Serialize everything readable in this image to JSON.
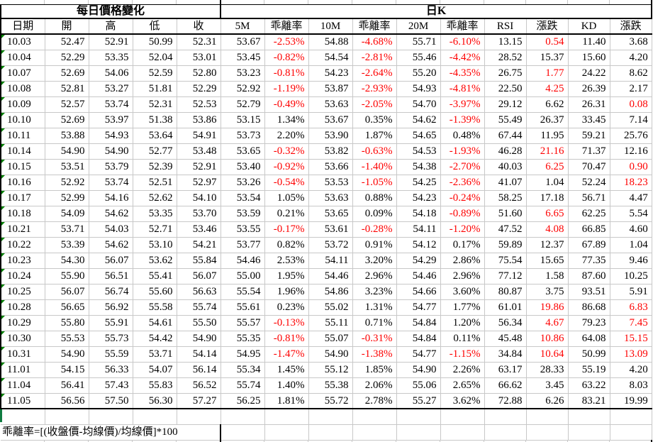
{
  "titles": {
    "left": "每日價格變化",
    "right": "日K"
  },
  "columns": [
    "日期",
    "開",
    "高",
    "低",
    "收",
    "5M",
    "乖離率",
    "10M",
    "乖離率",
    "20M",
    "乖離率",
    "RSI",
    "漲跌",
    "KD",
    "漲跌"
  ],
  "formula_note": "乖離率=[(收盤價-均線價)/均線價]*100",
  "colors": {
    "negative_red": "#fe0000",
    "gridline": "#c8c8c8",
    "border": "#000000",
    "indicator_green": "#008000",
    "selection_green": "#107C41"
  },
  "rows": [
    {
      "date": "10.03",
      "open": "52.47",
      "high": "52.91",
      "low": "50.99",
      "close": "52.31",
      "m5": "53.67",
      "bias5": "-2.53%",
      "m10": "54.88",
      "bias10": "-4.68%",
      "m20": "55.71",
      "bias20": "-6.10%",
      "rsi": "13.15",
      "chg_rsi": "0.54",
      "chg_rsi_red": true,
      "kd": "11.40",
      "chg_kd": "3.68",
      "chg_kd_red": false
    },
    {
      "date": "10.04",
      "open": "52.29",
      "high": "53.35",
      "low": "52.04",
      "close": "53.01",
      "m5": "53.45",
      "bias5": "-0.82%",
      "m10": "54.54",
      "bias10": "-2.81%",
      "m20": "55.46",
      "bias20": "-4.42%",
      "rsi": "28.52",
      "chg_rsi": "15.37",
      "chg_rsi_red": false,
      "kd": "15.60",
      "chg_kd": "4.20",
      "chg_kd_red": false
    },
    {
      "date": "10.07",
      "open": "52.69",
      "high": "54.06",
      "low": "52.59",
      "close": "52.80",
      "m5": "53.23",
      "bias5": "-0.81%",
      "m10": "54.23",
      "bias10": "-2.64%",
      "m20": "55.20",
      "bias20": "-4.35%",
      "rsi": "26.75",
      "chg_rsi": "1.77",
      "chg_rsi_red": true,
      "kd": "24.22",
      "chg_kd": "8.62",
      "chg_kd_red": false
    },
    {
      "date": "10.08",
      "open": "52.81",
      "high": "53.27",
      "low": "51.81",
      "close": "52.29",
      "m5": "52.92",
      "bias5": "-1.19%",
      "m10": "53.87",
      "bias10": "-2.93%",
      "m20": "54.93",
      "bias20": "-4.81%",
      "rsi": "22.50",
      "chg_rsi": "4.25",
      "chg_rsi_red": true,
      "kd": "26.39",
      "chg_kd": "2.17",
      "chg_kd_red": false
    },
    {
      "date": "10.09",
      "open": "52.57",
      "high": "53.74",
      "low": "52.31",
      "close": "52.53",
      "m5": "52.79",
      "bias5": "-0.49%",
      "m10": "53.63",
      "bias10": "-2.05%",
      "m20": "54.70",
      "bias20": "-3.97%",
      "rsi": "29.12",
      "chg_rsi": "6.62",
      "chg_rsi_red": false,
      "kd": "26.31",
      "chg_kd": "0.08",
      "chg_kd_red": true
    },
    {
      "date": "10.10",
      "open": "52.69",
      "high": "53.97",
      "low": "51.38",
      "close": "53.86",
      "m5": "53.15",
      "bias5": "1.34%",
      "m10": "53.67",
      "bias10": "0.35%",
      "m20": "54.62",
      "bias20": "-1.39%",
      "rsi": "55.49",
      "chg_rsi": "26.37",
      "chg_rsi_red": false,
      "kd": "33.45",
      "chg_kd": "7.14",
      "chg_kd_red": false
    },
    {
      "date": "10.11",
      "open": "53.88",
      "high": "54.93",
      "low": "53.64",
      "close": "54.91",
      "m5": "53.73",
      "bias5": "2.20%",
      "m10": "53.90",
      "bias10": "1.87%",
      "m20": "54.65",
      "bias20": "0.48%",
      "rsi": "67.44",
      "chg_rsi": "11.95",
      "chg_rsi_red": false,
      "kd": "59.21",
      "chg_kd": "25.76",
      "chg_kd_red": false
    },
    {
      "date": "10.14",
      "open": "54.90",
      "high": "54.90",
      "low": "52.77",
      "close": "53.48",
      "m5": "53.65",
      "bias5": "-0.32%",
      "m10": "53.82",
      "bias10": "-0.63%",
      "m20": "54.53",
      "bias20": "-1.93%",
      "rsi": "46.28",
      "chg_rsi": "21.16",
      "chg_rsi_red": true,
      "kd": "71.37",
      "chg_kd": "12.16",
      "chg_kd_red": false
    },
    {
      "date": "10.15",
      "open": "53.51",
      "high": "53.79",
      "low": "52.39",
      "close": "52.91",
      "m5": "53.40",
      "bias5": "-0.92%",
      "m10": "53.66",
      "bias10": "-1.40%",
      "m20": "54.38",
      "bias20": "-2.70%",
      "rsi": "40.03",
      "chg_rsi": "6.25",
      "chg_rsi_red": true,
      "kd": "70.47",
      "chg_kd": "0.90",
      "chg_kd_red": true
    },
    {
      "date": "10.16",
      "open": "52.92",
      "high": "53.74",
      "low": "52.51",
      "close": "52.97",
      "m5": "53.26",
      "bias5": "-0.54%",
      "m10": "53.53",
      "bias10": "-1.05%",
      "m20": "54.25",
      "bias20": "-2.36%",
      "rsi": "41.07",
      "chg_rsi": "1.04",
      "chg_rsi_red": false,
      "kd": "52.24",
      "chg_kd": "18.23",
      "chg_kd_red": true
    },
    {
      "date": "10.17",
      "open": "52.99",
      "high": "54.16",
      "low": "52.62",
      "close": "54.10",
      "m5": "53.54",
      "bias5": "1.05%",
      "m10": "53.63",
      "bias10": "0.88%",
      "m20": "54.23",
      "bias20": "-0.24%",
      "rsi": "58.25",
      "chg_rsi": "17.18",
      "chg_rsi_red": false,
      "kd": "56.71",
      "chg_kd": "4.47",
      "chg_kd_red": false
    },
    {
      "date": "10.18",
      "open": "54.09",
      "high": "54.62",
      "low": "53.35",
      "close": "53.70",
      "m5": "53.59",
      "bias5": "0.21%",
      "m10": "53.65",
      "bias10": "0.09%",
      "m20": "54.18",
      "bias20": "-0.89%",
      "rsi": "51.60",
      "chg_rsi": "6.65",
      "chg_rsi_red": true,
      "kd": "62.25",
      "chg_kd": "5.54",
      "chg_kd_red": false
    },
    {
      "date": "10.21",
      "open": "53.71",
      "high": "54.03",
      "low": "52.71",
      "close": "53.46",
      "m5": "53.55",
      "bias5": "-0.17%",
      "m10": "53.61",
      "bias10": "-0.28%",
      "m20": "54.11",
      "bias20": "-1.20%",
      "rsi": "47.52",
      "chg_rsi": "4.08",
      "chg_rsi_red": true,
      "kd": "66.85",
      "chg_kd": "4.60",
      "chg_kd_red": false
    },
    {
      "date": "10.22",
      "open": "53.39",
      "high": "54.62",
      "low": "53.10",
      "close": "54.21",
      "m5": "53.77",
      "bias5": "0.82%",
      "m10": "53.72",
      "bias10": "0.91%",
      "m20": "54.12",
      "bias20": "0.17%",
      "rsi": "59.89",
      "chg_rsi": "12.37",
      "chg_rsi_red": false,
      "kd": "67.89",
      "chg_kd": "1.04",
      "chg_kd_red": false
    },
    {
      "date": "10.23",
      "open": "54.30",
      "high": "56.07",
      "low": "53.62",
      "close": "55.84",
      "m5": "54.46",
      "bias5": "2.53%",
      "m10": "54.11",
      "bias10": "3.20%",
      "m20": "54.29",
      "bias20": "2.86%",
      "rsi": "75.54",
      "chg_rsi": "15.65",
      "chg_rsi_red": false,
      "kd": "77.35",
      "chg_kd": "9.46",
      "chg_kd_red": false
    },
    {
      "date": "10.24",
      "open": "55.90",
      "high": "56.51",
      "low": "55.41",
      "close": "56.07",
      "m5": "55.00",
      "bias5": "1.95%",
      "m10": "54.46",
      "bias10": "2.96%",
      "m20": "54.46",
      "bias20": "2.96%",
      "rsi": "77.12",
      "chg_rsi": "1.58",
      "chg_rsi_red": false,
      "kd": "87.60",
      "chg_kd": "10.25",
      "chg_kd_red": false
    },
    {
      "date": "10.25",
      "open": "56.07",
      "high": "56.74",
      "low": "55.60",
      "close": "56.63",
      "m5": "55.54",
      "bias5": "1.96%",
      "m10": "54.86",
      "bias10": "3.23%",
      "m20": "54.66",
      "bias20": "3.60%",
      "rsi": "80.87",
      "chg_rsi": "3.75",
      "chg_rsi_red": false,
      "kd": "93.51",
      "chg_kd": "5.91",
      "chg_kd_red": false
    },
    {
      "date": "10.28",
      "open": "56.65",
      "high": "56.92",
      "low": "55.58",
      "close": "55.74",
      "m5": "55.61",
      "bias5": "0.23%",
      "m10": "55.02",
      "bias10": "1.31%",
      "m20": "54.77",
      "bias20": "1.77%",
      "rsi": "61.01",
      "chg_rsi": "19.86",
      "chg_rsi_red": true,
      "kd": "86.68",
      "chg_kd": "6.83",
      "chg_kd_red": true
    },
    {
      "date": "10.29",
      "open": "55.80",
      "high": "55.91",
      "low": "54.61",
      "close": "55.50",
      "m5": "55.57",
      "bias5": "-0.13%",
      "m10": "55.11",
      "bias10": "0.71%",
      "m20": "54.84",
      "bias20": "1.20%",
      "rsi": "56.34",
      "chg_rsi": "4.67",
      "chg_rsi_red": true,
      "kd": "79.23",
      "chg_kd": "7.45",
      "chg_kd_red": true
    },
    {
      "date": "10.30",
      "open": "55.53",
      "high": "55.73",
      "low": "54.42",
      "close": "54.90",
      "m5": "55.35",
      "bias5": "-0.81%",
      "m10": "55.07",
      "bias10": "-0.31%",
      "m20": "54.84",
      "bias20": "0.11%",
      "rsi": "45.48",
      "chg_rsi": "10.86",
      "chg_rsi_red": true,
      "kd": "64.08",
      "chg_kd": "15.15",
      "chg_kd_red": true
    },
    {
      "date": "10.31",
      "open": "54.90",
      "high": "55.59",
      "low": "53.71",
      "close": "54.14",
      "m5": "54.95",
      "bias5": "-1.47%",
      "m10": "54.90",
      "bias10": "-1.38%",
      "m20": "54.77",
      "bias20": "-1.15%",
      "rsi": "34.84",
      "chg_rsi": "10.64",
      "chg_rsi_red": true,
      "kd": "50.99",
      "chg_kd": "13.09",
      "chg_kd_red": true
    },
    {
      "date": "11.01",
      "open": "54.15",
      "high": "56.33",
      "low": "54.07",
      "close": "56.14",
      "m5": "55.34",
      "bias5": "1.45%",
      "m10": "55.12",
      "bias10": "1.85%",
      "m20": "54.90",
      "bias20": "2.26%",
      "rsi": "63.17",
      "chg_rsi": "28.33",
      "chg_rsi_red": false,
      "kd": "55.19",
      "chg_kd": "4.20",
      "chg_kd_red": false
    },
    {
      "date": "11.04",
      "open": "56.41",
      "high": "57.43",
      "low": "55.83",
      "close": "56.52",
      "m5": "55.74",
      "bias5": "1.40%",
      "m10": "55.38",
      "bias10": "2.06%",
      "m20": "55.06",
      "bias20": "2.65%",
      "rsi": "66.62",
      "chg_rsi": "3.45",
      "chg_rsi_red": false,
      "kd": "63.22",
      "chg_kd": "8.03",
      "chg_kd_red": false
    },
    {
      "date": "11.05",
      "open": "56.56",
      "high": "57.50",
      "low": "56.30",
      "close": "57.27",
      "m5": "56.25",
      "bias5": "1.81%",
      "m10": "55.72",
      "bias10": "2.78%",
      "m20": "55.27",
      "bias20": "3.62%",
      "rsi": "72.88",
      "chg_rsi": "6.26",
      "chg_rsi_red": false,
      "kd": "83.21",
      "chg_kd": "19.99",
      "chg_kd_red": false
    }
  ]
}
